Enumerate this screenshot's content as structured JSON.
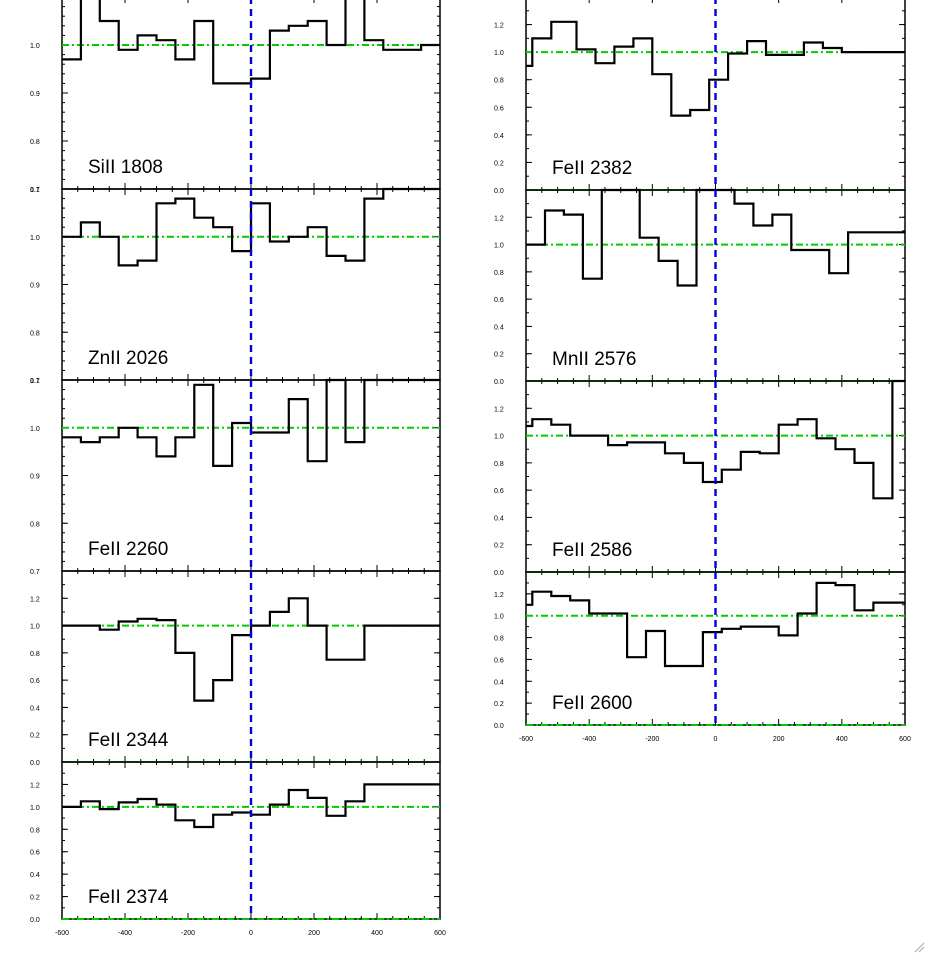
{
  "colors": {
    "spectrum": "#000000",
    "continuum_line": "#00cc00",
    "zero_velocity_line": "#0000dd",
    "frame": "#000000"
  },
  "chart_data": [
    {
      "type": "line",
      "step": true,
      "label": "SiII 1808",
      "xlim": [
        -600,
        600
      ],
      "ylim": [
        0.7,
        1.1
      ],
      "yticks": [
        "0.7",
        "0.8",
        "0.9",
        "1.0",
        "1.1"
      ],
      "ytick_values": [
        0.7,
        0.8,
        0.9,
        1.0,
        1.1
      ],
      "xticks": [],
      "xtick_values": [],
      "continuum": 1.0,
      "zero_velocity": 0,
      "x": [
        -600,
        -540,
        -480,
        -420,
        -360,
        -300,
        -240,
        -180,
        -120,
        -60,
        0,
        60,
        120,
        180,
        240,
        300,
        360,
        420,
        480,
        540,
        600
      ],
      "y": [
        0.97,
        1.1,
        1.05,
        0.99,
        1.02,
        1.01,
        0.97,
        1.05,
        0.92,
        0.92,
        0.93,
        1.03,
        1.04,
        1.05,
        1.0,
        1.13,
        1.01,
        0.99,
        0.99,
        1.0,
        1.0
      ]
    },
    {
      "type": "line",
      "step": true,
      "label": "ZnII 2026",
      "xlim": [
        -600,
        600
      ],
      "ylim": [
        0.7,
        1.1
      ],
      "yticks": [
        "0.7",
        "0.8",
        "0.9",
        "1.0",
        "1.1"
      ],
      "ytick_values": [
        0.7,
        0.8,
        0.9,
        1.0,
        1.1
      ],
      "xticks": [],
      "xtick_values": [],
      "continuum": 1.0,
      "zero_velocity": 0,
      "x": [
        -600,
        -540,
        -480,
        -420,
        -360,
        -300,
        -240,
        -180,
        -120,
        -60,
        0,
        60,
        120,
        180,
        240,
        300,
        360,
        420,
        480,
        540,
        600
      ],
      "y": [
        1.0,
        1.03,
        1.0,
        0.94,
        0.95,
        1.07,
        1.08,
        1.04,
        1.02,
        0.97,
        1.07,
        0.99,
        1.0,
        1.02,
        0.96,
        0.95,
        1.08,
        1.1,
        1.1,
        1.1,
        1.1
      ]
    },
    {
      "type": "line",
      "step": true,
      "label": "FeII 2260",
      "xlim": [
        -600,
        600
      ],
      "ylim": [
        0.7,
        1.1
      ],
      "yticks": [
        "0.7",
        "0.8",
        "0.9",
        "1.0",
        "1.1"
      ],
      "ytick_values": [
        0.7,
        0.8,
        0.9,
        1.0,
        1.1
      ],
      "xticks": [],
      "xtick_values": [],
      "continuum": 1.0,
      "zero_velocity": 0,
      "x": [
        -600,
        -540,
        -480,
        -420,
        -360,
        -300,
        -240,
        -180,
        -120,
        -60,
        0,
        60,
        120,
        180,
        240,
        300,
        360,
        420,
        480,
        540,
        600
      ],
      "y": [
        0.98,
        0.97,
        0.98,
        1.0,
        0.98,
        0.94,
        0.98,
        1.09,
        0.92,
        1.01,
        0.99,
        0.99,
        1.06,
        0.93,
        1.1,
        0.97,
        1.1,
        1.1,
        1.1,
        1.1,
        1.1
      ]
    },
    {
      "type": "line",
      "step": true,
      "label": "FeII 2344",
      "xlim": [
        -600,
        600
      ],
      "ylim": [
        0.0,
        1.4
      ],
      "yticks": [
        "0.0",
        "0.2",
        "0.4",
        "0.6",
        "0.8",
        "1.0",
        "1.2"
      ],
      "ytick_values": [
        0.0,
        0.2,
        0.4,
        0.6,
        0.8,
        1.0,
        1.2
      ],
      "xticks": [],
      "xtick_values": [],
      "continuum": 1.0,
      "zero_velocity": 0,
      "x": [
        -600,
        -540,
        -480,
        -420,
        -360,
        -300,
        -240,
        -180,
        -120,
        -60,
        0,
        60,
        120,
        180,
        240,
        300,
        360,
        420,
        480,
        540,
        600
      ],
      "y": [
        1.0,
        1.0,
        0.97,
        1.03,
        1.05,
        1.04,
        0.8,
        0.45,
        0.6,
        0.93,
        1.0,
        1.1,
        1.2,
        1.0,
        0.75,
        0.75,
        1.0,
        1.0,
        1.0,
        1.0,
        1.0
      ]
    },
    {
      "type": "line",
      "step": true,
      "label": "FeII 2374",
      "xlim": [
        -600,
        600
      ],
      "ylim": [
        0.0,
        1.4
      ],
      "yticks": [
        "0.0",
        "0.2",
        "0.4",
        "0.6",
        "0.8",
        "1.0",
        "1.2"
      ],
      "ytick_values": [
        0.0,
        0.2,
        0.4,
        0.6,
        0.8,
        1.0,
        1.2
      ],
      "xticks": [
        "-600",
        "-400",
        "-200",
        "0",
        "200",
        "400",
        "600"
      ],
      "xtick_values": [
        -600,
        -400,
        -200,
        0,
        200,
        400,
        600
      ],
      "continuum": 1.0,
      "zero_velocity": 0,
      "x": [
        -600,
        -540,
        -480,
        -420,
        -360,
        -300,
        -240,
        -180,
        -120,
        -60,
        0,
        60,
        120,
        180,
        240,
        300,
        360,
        420,
        480,
        540,
        600
      ],
      "y": [
        1.0,
        1.05,
        0.98,
        1.04,
        1.07,
        1.02,
        0.88,
        0.82,
        0.93,
        0.95,
        0.93,
        1.02,
        1.15,
        1.08,
        0.92,
        1.05,
        1.2,
        1.2,
        1.2,
        1.2,
        1.2
      ]
    },
    {
      "type": "line",
      "step": true,
      "label": "FeII 2382",
      "xlim": [
        -600,
        600
      ],
      "ylim": [
        0.0,
        1.4
      ],
      "yticks": [
        "0.0",
        "0.2",
        "0.4",
        "0.6",
        "0.8",
        "1.0",
        "1.2"
      ],
      "ytick_values": [
        0.0,
        0.2,
        0.4,
        0.6,
        0.8,
        1.0,
        1.2
      ],
      "xticks": [],
      "xtick_values": [],
      "continuum": 1.0,
      "zero_velocity": 0,
      "x": [
        -600,
        -580,
        -520,
        -440,
        -380,
        -320,
        -260,
        -200,
        -140,
        -80,
        -20,
        40,
        100,
        160,
        220,
        280,
        340,
        400,
        460,
        520,
        600
      ],
      "y": [
        0.9,
        1.1,
        1.22,
        1.02,
        0.92,
        1.04,
        1.1,
        0.84,
        0.54,
        0.58,
        0.8,
        0.99,
        1.08,
        0.98,
        0.98,
        1.07,
        1.03,
        1.0,
        1.0,
        1.0,
        1.0
      ]
    },
    {
      "type": "line",
      "step": true,
      "label": "MnII 2576",
      "xlim": [
        -600,
        600
      ],
      "ylim": [
        0.0,
        1.4
      ],
      "yticks": [
        "0.0",
        "0.2",
        "0.4",
        "0.6",
        "0.8",
        "1.0",
        "1.2"
      ],
      "ytick_values": [
        0.0,
        0.2,
        0.4,
        0.6,
        0.8,
        1.0,
        1.2
      ],
      "xticks": [],
      "xtick_values": [],
      "continuum": 1.0,
      "zero_velocity": 0,
      "x": [
        -600,
        -540,
        -480,
        -420,
        -360,
        -300,
        -240,
        -180,
        -120,
        -60,
        0,
        60,
        120,
        180,
        240,
        300,
        360,
        420,
        480,
        540,
        600
      ],
      "y": [
        1.0,
        1.25,
        1.22,
        0.75,
        1.4,
        1.4,
        1.05,
        0.88,
        0.7,
        1.4,
        1.4,
        1.3,
        1.14,
        1.22,
        0.96,
        0.96,
        0.79,
        1.09,
        1.09,
        1.09,
        1.09
      ]
    },
    {
      "type": "line",
      "step": true,
      "label": "FeII 2586",
      "xlim": [
        -600,
        600
      ],
      "ylim": [
        0.0,
        1.4
      ],
      "yticks": [
        "0.0",
        "0.2",
        "0.4",
        "0.6",
        "0.8",
        "1.0",
        "1.2"
      ],
      "ytick_values": [
        0.0,
        0.2,
        0.4,
        0.6,
        0.8,
        1.0,
        1.2
      ],
      "xticks": [],
      "xtick_values": [],
      "continuum": 1.0,
      "zero_velocity": 0,
      "x": [
        -600,
        -580,
        -520,
        -460,
        -400,
        -340,
        -280,
        -220,
        -160,
        -100,
        -40,
        20,
        80,
        140,
        200,
        260,
        320,
        380,
        440,
        500,
        560,
        600
      ],
      "y": [
        1.07,
        1.12,
        1.08,
        1.0,
        1.0,
        0.93,
        0.95,
        0.95,
        0.87,
        0.8,
        0.66,
        0.75,
        0.88,
        0.87,
        1.08,
        1.12,
        0.98,
        0.9,
        0.8,
        0.54,
        1.4,
        1.4
      ]
    },
    {
      "type": "line",
      "step": true,
      "label": "FeII 2600",
      "xlim": [
        -600,
        600
      ],
      "ylim": [
        0.0,
        1.4
      ],
      "yticks": [
        "0.0",
        "0.2",
        "0.4",
        "0.6",
        "0.8",
        "1.0",
        "1.2"
      ],
      "ytick_values": [
        0.0,
        0.2,
        0.4,
        0.6,
        0.8,
        1.0,
        1.2
      ],
      "xticks": [
        "-600",
        "-400",
        "-200",
        "0",
        "200",
        "400",
        "600"
      ],
      "xtick_values": [
        -600,
        -400,
        -200,
        0,
        200,
        400,
        600
      ],
      "continuum": 1.0,
      "zero_velocity": 0,
      "x": [
        -600,
        -580,
        -520,
        -460,
        -400,
        -340,
        -280,
        -220,
        -160,
        -100,
        -40,
        20,
        80,
        140,
        200,
        260,
        320,
        380,
        440,
        500,
        560,
        600
      ],
      "y": [
        1.1,
        1.22,
        1.18,
        1.14,
        1.02,
        1.02,
        0.62,
        0.86,
        0.54,
        0.54,
        0.85,
        0.88,
        0.9,
        0.9,
        0.82,
        1.02,
        1.3,
        1.28,
        1.05,
        1.12,
        1.12,
        1.12
      ]
    }
  ]
}
